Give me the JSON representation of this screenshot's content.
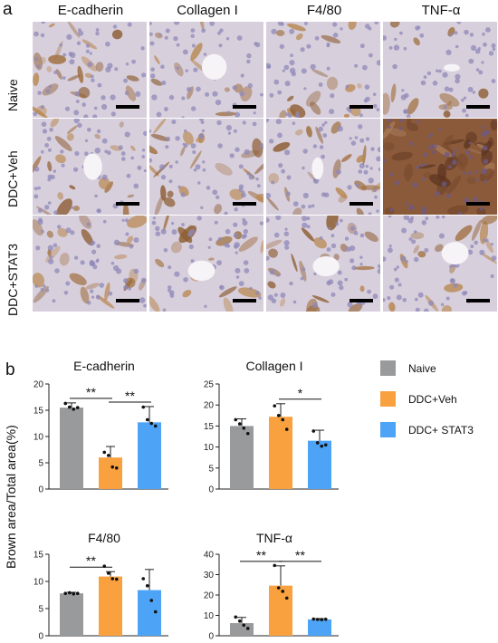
{
  "panel_a": {
    "letter": "a",
    "columns": [
      "E-cadherin",
      "Collagen I",
      "F4/80",
      "TNF-α"
    ],
    "rows": [
      "Naive",
      "DDC+Veh",
      "DDC+STAT3"
    ]
  },
  "panel_b": {
    "letter": "b",
    "ylabel": "Brown area/Total area(%)"
  },
  "legend": [
    {
      "label": "Naive",
      "color": "#999a9c"
    },
    {
      "label": "DDC+Veh",
      "color": "#f9a03f"
    },
    {
      "label": "DDC+ STAT3",
      "color": "#4da3f5"
    }
  ],
  "chart_data": [
    {
      "type": "bar",
      "title": "E-cadherin",
      "categories": [
        "Naive",
        "DDC+Veh",
        "DDC+ STAT3"
      ],
      "values": [
        15.5,
        6.0,
        12.7
      ],
      "errors": [
        0.9,
        2.1,
        3.0
      ],
      "points": [
        [
          16.3,
          15.6,
          15.2,
          15.5
        ],
        [
          7.0,
          6.4,
          4.2,
          4.0
        ],
        [
          15.6,
          13.2,
          12.5,
          12.0
        ]
      ],
      "ylim": [
        0,
        20
      ],
      "yticks": [
        0,
        5,
        10,
        15,
        20
      ],
      "significance": [
        {
          "from": 0,
          "to": 1,
          "label": "**"
        },
        {
          "from": 1,
          "to": 2,
          "label": "**"
        }
      ]
    },
    {
      "type": "bar",
      "title": "Collagen I",
      "categories": [
        "Naive",
        "DDC+Veh",
        "DDC+ STAT3"
      ],
      "values": [
        15.0,
        17.2,
        11.5
      ],
      "errors": [
        1.7,
        3.1,
        2.5
      ],
      "points": [
        [
          16.5,
          15.5,
          14.5,
          13.2
        ],
        [
          19.8,
          17.5,
          16.5,
          14.2
        ],
        [
          13.8,
          11.0,
          10.2,
          10.5
        ]
      ],
      "ylim": [
        0,
        25
      ],
      "yticks": [
        0,
        5,
        10,
        15,
        20,
        25
      ],
      "significance": [
        {
          "from": 1,
          "to": 2,
          "label": "*"
        }
      ]
    },
    {
      "type": "bar",
      "title": "F4/80",
      "categories": [
        "Naive",
        "DDC+Veh",
        "DDC+ STAT3"
      ],
      "values": [
        7.8,
        10.9,
        8.4
      ],
      "errors": [
        0.2,
        0.9,
        3.8
      ],
      "points": [
        [
          7.8,
          7.9,
          7.7,
          7.8
        ],
        [
          12.8,
          11.5,
          10.5,
          10.4
        ],
        [
          10.5,
          9.2,
          6.5,
          4.4
        ]
      ],
      "ylim": [
        0,
        15
      ],
      "yticks": [
        0,
        5,
        10,
        15
      ],
      "significance": [
        {
          "from": 0,
          "to": 1,
          "label": "**"
        }
      ]
    },
    {
      "type": "bar",
      "title": "TNF-α",
      "categories": [
        "Naive",
        "DDC+Veh",
        "DDC+ STAT3"
      ],
      "values": [
        6.2,
        24.6,
        8.0
      ],
      "errors": [
        2.8,
        9.7,
        0.4
      ],
      "points": [
        [
          9.2,
          7.2,
          5.2,
          3.6
        ],
        [
          34.5,
          23.5,
          21.8,
          18.5
        ],
        [
          8.2,
          8.0,
          7.9,
          8.1
        ]
      ],
      "ylim": [
        0,
        40
      ],
      "yticks": [
        0,
        10,
        20,
        30,
        40
      ],
      "significance": [
        {
          "from": 0,
          "to": 1,
          "label": "**"
        },
        {
          "from": 1,
          "to": 2,
          "label": "**"
        }
      ]
    }
  ]
}
